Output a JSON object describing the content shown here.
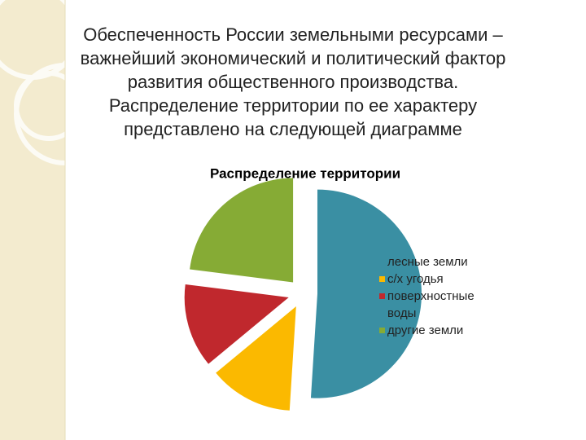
{
  "heading": [
    "Обеспеченность России земельными ресурсами –",
    "важнейший экономический и политический фактор",
    "развития общественного производства.",
    "Распределение территории по ее характеру",
    "представлено на следующей диаграмме"
  ],
  "chart_data": {
    "type": "pie",
    "title": "Распределение территории",
    "categories": [
      "лесные земли",
      "с/х угодья",
      "поверхностные воды",
      "другие земли"
    ],
    "values": [
      51,
      13,
      13,
      23
    ],
    "colors": [
      "#3a8fa3",
      "#fbb900",
      "#c0282d",
      "#86ab35"
    ],
    "legend": "right"
  }
}
